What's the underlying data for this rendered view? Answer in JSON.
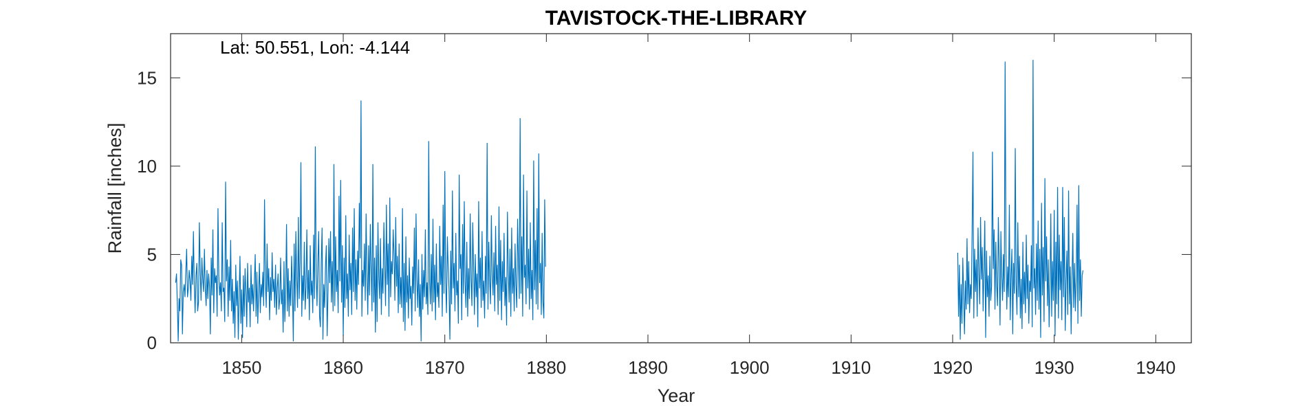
{
  "chart_data": {
    "type": "line",
    "title": "TAVISTOCK-THE-LIBRARY",
    "annotation": "Lat: 50.551, Lon: -4.144",
    "xlabel": "Year",
    "ylabel": "Rainfall [inches]",
    "xlim": [
      1843,
      1943.5
    ],
    "ylim": [
      0,
      17.5
    ],
    "xticks": [
      1850,
      1860,
      1870,
      1880,
      1890,
      1900,
      1910,
      1920,
      1930,
      1940
    ],
    "yticks": [
      0,
      5,
      10,
      15
    ],
    "grid": false,
    "line_color": "#0072BD",
    "series": [
      {
        "x_start": 1843.5,
        "x_step": 0.0833333,
        "values": [
          3.4,
          3.9,
          2.2,
          0.1,
          2.5,
          1.8,
          4.7,
          4.4,
          0.5,
          2.9,
          3.3,
          2.6,
          4.0,
          5.3,
          2.6,
          3.1,
          4.1,
          3.5,
          2.4,
          4.9,
          3.3,
          6.3,
          3.3,
          1.7,
          3.8,
          4.5,
          1.8,
          2.3,
          6.8,
          4.1,
          2.4,
          4.8,
          3.6,
          2.9,
          5.3,
          3.1,
          2.1,
          4.1,
          2.5,
          3.9,
          3.2,
          0.5,
          4.8,
          2.7,
          6.4,
          1.7,
          4.2,
          3.4,
          3.8,
          1.5,
          7.6,
          3.8,
          2.7,
          3.4,
          1.8,
          6.8,
          2.9,
          3.1,
          1.2,
          9.1,
          3.5,
          4.7,
          1.5,
          4.3,
          2.4,
          5.8,
          1.8,
          3.6,
          1.1,
          2.9,
          0.3,
          4.4,
          2.1,
          3.5,
          0.2,
          2.7,
          4.9,
          1.1,
          3.0,
          0.3,
          3.8,
          1.5,
          4.2,
          2.9,
          0.9,
          4.5,
          2.3,
          3.1,
          0.9,
          4.4,
          2.2,
          3.3,
          1.8,
          3.4,
          5.0,
          1.5,
          4.0,
          1.1,
          2.8,
          4.5,
          1.7,
          3.3,
          2.6,
          4.0,
          2.1,
          8.1,
          3.5,
          2.0,
          5.6,
          2.9,
          4.2,
          1.3,
          3.7,
          2.4,
          5.1,
          2.9,
          3.6,
          2.0,
          4.4,
          1.6,
          3.1,
          3.9,
          1.9,
          2.5,
          4.8,
          2.2,
          3.0,
          0.6,
          4.6,
          1.2,
          2.9,
          6.7,
          1.8,
          4.2,
          1.5,
          3.5,
          2.1,
          4.9,
          3.0,
          0.1,
          5.6,
          1.8,
          6.3,
          3.7,
          2.0,
          7.1,
          2.5,
          4.6,
          10.2,
          1.5,
          3.8,
          2.4,
          5.7,
          1.9,
          3.2,
          6.4,
          2.5,
          4.1,
          1.3,
          5.5,
          2.7,
          3.5,
          1.7,
          6.1,
          2.5,
          11.1,
          3.9,
          2.1,
          4.6,
          6.3,
          1.5,
          0.9,
          4.5,
          6.5,
          0.2,
          3.3,
          2.0,
          4.3,
          5.5,
          0.4,
          2.9,
          5.9,
          3.4,
          6.3,
          2.3,
          4.6,
          1.8,
          10.1,
          2.1,
          6.0,
          2.9,
          4.1,
          1.7,
          8.3,
          3.5,
          9.2,
          2.3,
          5.5,
          0.4,
          4.8,
          2.0,
          7.2,
          2.5,
          3.9,
          1.5,
          6.1,
          3.0,
          4.5,
          1.6,
          6.5,
          2.9,
          7.6,
          2.4,
          4.7,
          1.9,
          5.2,
          3.3,
          7.9,
          4.8,
          13.7,
          1.5,
          4.1,
          3.2,
          5.6,
          2.4,
          7.3,
          3.9,
          1.6,
          5.5,
          2.7,
          6.7,
          4.1,
          1.8,
          10.1,
          2.3,
          4.8,
          0.6,
          5.5,
          1.2,
          6.8,
          3.7,
          2.5,
          5.9,
          1.6,
          4.2,
          2.8,
          6.8,
          4.5,
          2.1,
          7.8,
          3.3,
          5.6,
          1.5,
          8.2,
          2.6,
          4.6,
          3.9,
          6.4,
          5.0,
          2.4,
          7.1,
          3.2,
          4.9,
          1.7,
          5.6,
          2.2,
          3.7,
          2.0,
          7.6,
          1.2,
          4.5,
          0.7,
          6.0,
          2.3,
          3.8,
          1.4,
          4.8,
          2.5,
          3.2,
          1.0,
          4.3,
          2.8,
          6.5,
          1.8,
          7.3,
          3.6,
          2.0,
          4.7,
          1.5,
          3.3,
          0.1,
          5.0,
          1.9,
          4.1,
          2.6,
          6.4,
          2.2,
          3.4,
          1.6,
          11.4,
          3.5,
          2.2,
          5.0,
          1.8,
          7.0,
          2.3,
          4.4,
          1.3,
          5.6,
          2.6,
          3.4,
          2.0,
          6.6,
          3.3,
          4.9,
          1.5,
          7.8,
          2.8,
          9.7,
          3.4,
          1.7,
          6.0,
          4.3,
          2.9,
          0.2,
          5.2,
          2.2,
          8.6,
          3.1,
          4.5,
          1.8,
          6.2,
          2.7,
          3.5,
          1.1,
          9.5,
          4.2,
          5.0,
          1.3,
          6.7,
          2.8,
          8.0,
          3.4,
          2.0,
          5.7,
          1.5,
          4.2,
          2.5,
          7.3,
          3.6,
          2.1,
          6.8,
          4.3,
          1.6,
          5.0,
          2.6,
          3.9,
          0.9,
          8.0,
          3.1,
          4.8,
          2.0,
          6.3,
          2.4,
          3.5,
          1.4,
          4.9,
          2.8,
          11.3,
          1.9,
          5.7,
          3.5,
          2.2,
          7.2,
          3.8,
          2.7,
          5.1,
          1.8,
          6.6,
          3.3,
          4.4,
          1.6,
          7.7,
          2.4,
          5.8,
          1.3,
          4.6,
          2.9,
          6.2,
          2.1,
          3.7,
          1.0,
          7.4,
          4.0,
          2.3,
          5.3,
          1.5,
          6.5,
          2.8,
          4.2,
          1.8,
          5.6,
          3.3,
          2.0,
          7.0,
          4.7,
          2.5,
          12.7,
          2.8,
          6.0,
          1.5,
          9.5,
          3.7,
          4.4,
          2.2,
          8.6,
          3.1,
          5.3,
          1.9,
          6.8,
          2.5,
          4.1,
          1.3,
          10.3,
          3.0,
          5.8,
          2.2,
          7.6,
          1.9,
          10.7,
          3.4,
          4.5,
          1.6,
          6.2,
          2.3,
          1.4,
          8.1,
          4.3
        ]
      },
      {
        "x_start": 1920.5,
        "x_step": 0.0833333,
        "values": [
          5.1,
          1.5,
          4.4,
          0.2,
          3.3,
          1.1,
          4.8,
          2.7,
          0.5,
          3.5,
          1.9,
          5.9,
          2.2,
          4.6,
          1.7,
          3.3,
          2.5,
          6.2,
          10.8,
          1.4,
          5.3,
          2.9,
          4.7,
          1.5,
          6.5,
          3.9,
          2.2,
          7.1,
          3.6,
          5.4,
          1.8,
          4.1,
          6.9,
          0.3,
          5.2,
          2.6,
          3.8,
          1.5,
          4.9,
          2.4,
          3.2,
          10.8,
          4.2,
          6.4,
          1.9,
          5.7,
          3.3,
          2.1,
          7.1,
          4.5,
          1.0,
          6.3,
          3.8,
          2.4,
          5.0,
          2.9,
          15.9,
          5.1,
          1.9,
          4.3,
          2.6,
          7.8,
          1.3,
          3.7,
          5.3,
          0.5,
          4.5,
          2.8,
          11.0,
          3.4,
          1.6,
          6.8,
          2.6,
          4.9,
          1.4,
          3.6,
          0.8,
          5.7,
          2.2,
          4.0,
          1.7,
          6.1,
          2.5,
          4.4,
          1.1,
          3.5,
          2.9,
          5.5,
          0.9,
          16.0,
          3.1,
          4.2,
          1.6,
          5.6,
          2.4,
          6.9,
          1.9,
          5.3,
          0.3,
          7.9,
          2.7,
          5.4,
          1.2,
          9.3,
          3.5,
          6.0,
          2.1,
          4.7,
          0.9,
          3.3,
          7.3,
          1.5,
          4.6,
          2.4,
          7.5,
          0.4,
          5.7,
          2.2,
          8.8,
          1.4,
          6.1,
          3.0,
          4.6,
          1.3,
          8.8,
          2.6,
          7.1,
          0.7,
          3.5,
          5.2,
          1.6,
          8.6,
          2.2,
          4.3,
          0.5,
          3.7,
          6.2,
          2.0,
          4.5,
          1.8,
          3.6,
          7.8,
          1.1,
          8.9,
          2.4,
          4.7,
          1.5,
          3.8,
          4.1
        ]
      }
    ]
  }
}
